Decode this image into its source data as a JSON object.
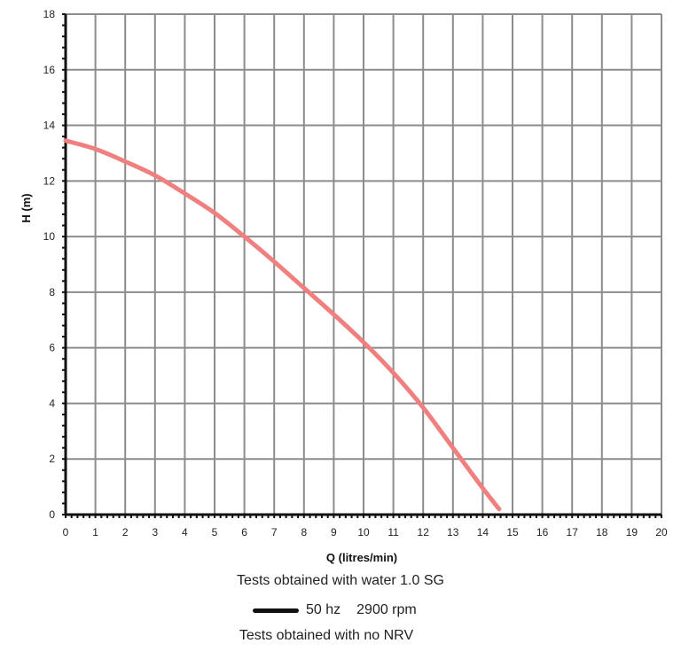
{
  "chart_data": {
    "type": "line",
    "xlabel": "Q (litres/min)",
    "ylabel": "H (m)",
    "xlim": [
      0,
      20
    ],
    "ylim": [
      0,
      18
    ],
    "x_ticks": [
      "0",
      "1",
      "2",
      "3",
      "4",
      "5",
      "6",
      "7",
      "8",
      "9",
      "10",
      "11",
      "12",
      "13",
      "14",
      "15",
      "16",
      "17",
      "18",
      "19",
      "20"
    ],
    "y_ticks": [
      "0",
      "2",
      "4",
      "6",
      "8",
      "10",
      "12",
      "14",
      "16",
      "18"
    ],
    "grid": true,
    "series": [
      {
        "color": "#f08080",
        "x": [
          0,
          1,
          2,
          3,
          4,
          5,
          6,
          7,
          8,
          9,
          10,
          11,
          12,
          13,
          14,
          14.55
        ],
        "y": [
          13.45,
          13.15,
          12.7,
          12.2,
          11.55,
          10.85,
          10.0,
          9.1,
          8.15,
          7.2,
          6.2,
          5.1,
          3.85,
          2.4,
          0.95,
          0.2
        ]
      }
    ]
  },
  "notes": {
    "test_water": "Tests obtained with water 1.0 SG",
    "legend_label": "50 hz",
    "legend_speed": "2900 rpm",
    "test_nrv": "Tests obtained with no NRV"
  },
  "colors": {
    "grid": "#8c8c8c",
    "axis": "#111111",
    "curve": "#f08080"
  }
}
